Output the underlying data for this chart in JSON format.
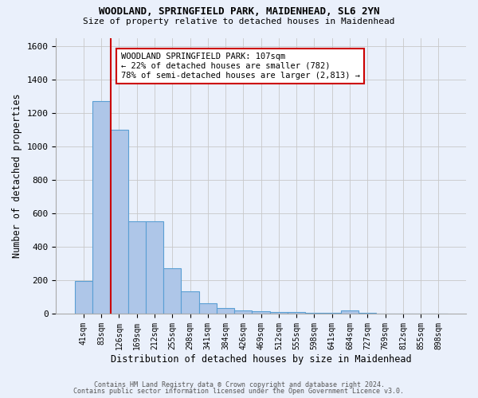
{
  "title1": "WOODLAND, SPRINGFIELD PARK, MAIDENHEAD, SL6 2YN",
  "title2": "Size of property relative to detached houses in Maidenhead",
  "xlabel": "Distribution of detached houses by size in Maidenhead",
  "ylabel": "Number of detached properties",
  "footer1": "Contains HM Land Registry data ® Crown copyright and database right 2024.",
  "footer2": "Contains public sector information licensed under the Open Government Licence v3.0.",
  "bar_labels": [
    "41sqm",
    "83sqm",
    "126sqm",
    "169sqm",
    "212sqm",
    "255sqm",
    "298sqm",
    "341sqm",
    "384sqm",
    "426sqm",
    "469sqm",
    "512sqm",
    "555sqm",
    "598sqm",
    "641sqm",
    "684sqm",
    "727sqm",
    "769sqm",
    "812sqm",
    "855sqm",
    "898sqm"
  ],
  "bar_values": [
    196,
    1270,
    1100,
    553,
    553,
    270,
    135,
    60,
    33,
    18,
    12,
    10,
    8,
    5,
    3,
    18,
    3,
    0,
    0,
    0,
    0
  ],
  "bar_color": "#aec6e8",
  "bar_edge_color": "#5a9fd4",
  "bg_color": "#eaf0fb",
  "grid_color": "#c8c8c8",
  "vline_color": "#cc0000",
  "vline_x": 1.55,
  "annotation_text": "WOODLAND SPRINGFIELD PARK: 107sqm\n← 22% of detached houses are smaller (782)\n78% of semi-detached houses are larger (2,813) →",
  "annotation_box_color": "#ffffff",
  "annotation_box_edge": "#cc0000",
  "ylim": [
    0,
    1650
  ],
  "yticks": [
    0,
    200,
    400,
    600,
    800,
    1000,
    1200,
    1400,
    1600
  ]
}
